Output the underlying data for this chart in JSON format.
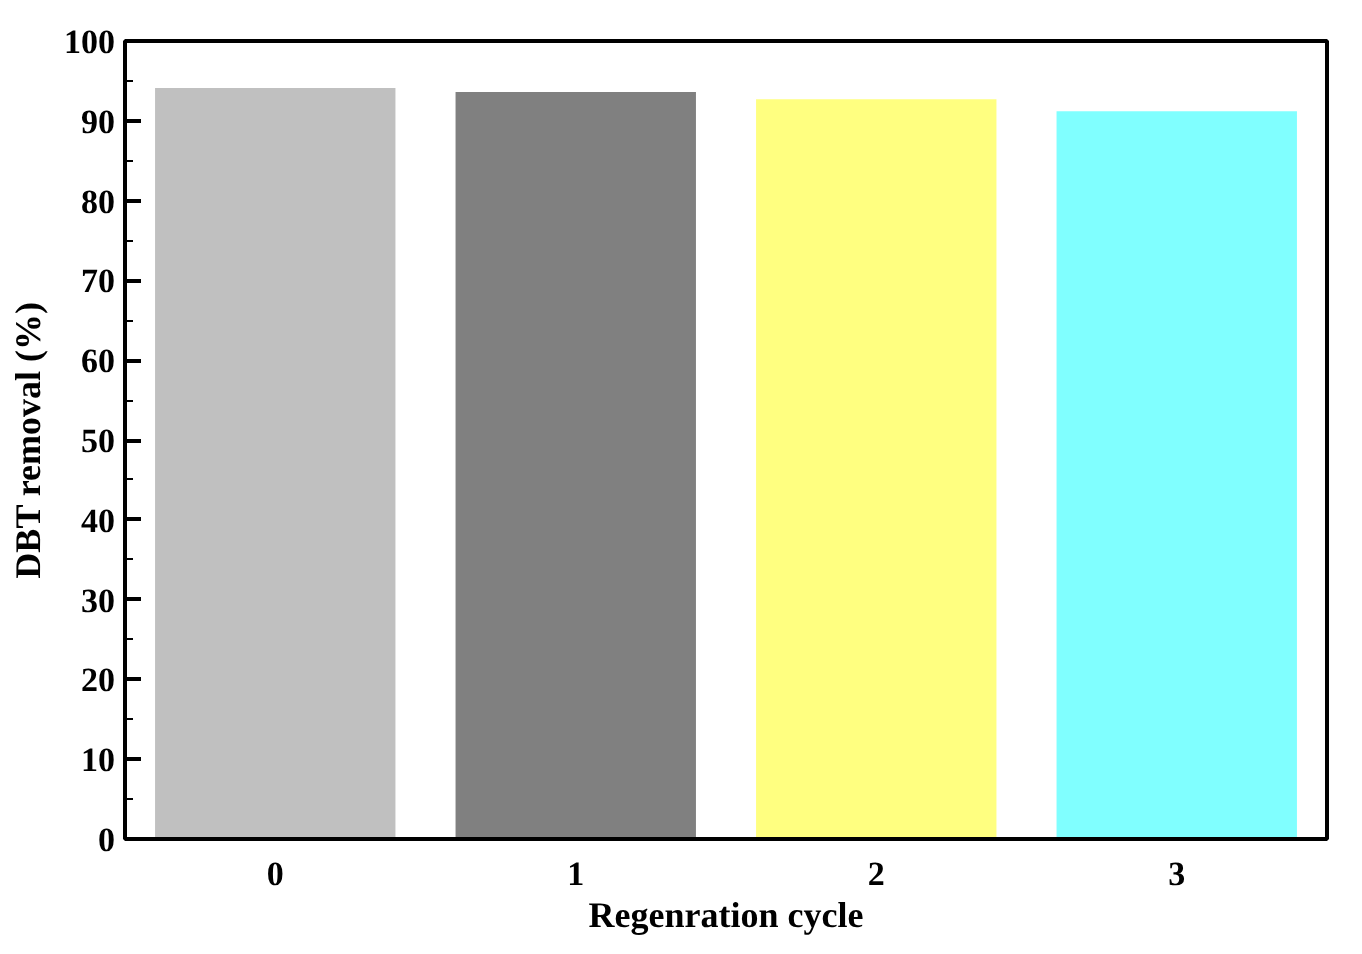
{
  "chart_data": {
    "type": "bar",
    "xlabel": "Regenration cycle",
    "ylabel": "DBT removal (%)",
    "categories": [
      "0",
      "1",
      "2",
      "3"
    ],
    "values": [
      94.1,
      93.6,
      92.7,
      91.2
    ],
    "colors": [
      "#c0c0c0",
      "#808080",
      "#ffff80",
      "#80ffff"
    ],
    "ylim": [
      0,
      100
    ],
    "yticks": [
      0,
      10,
      20,
      30,
      40,
      50,
      60,
      70,
      80,
      90,
      100
    ],
    "grid": false
  }
}
